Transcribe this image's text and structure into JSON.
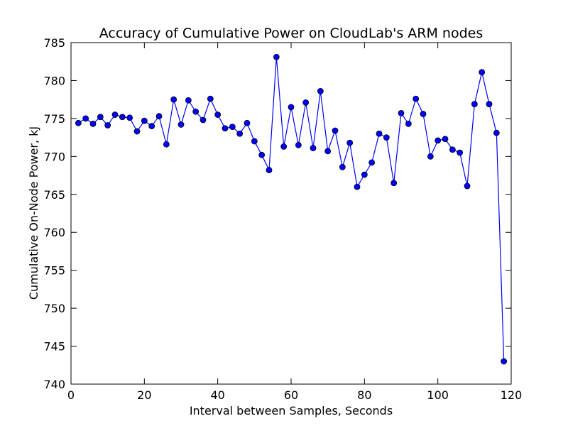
{
  "chart_data": {
    "type": "line",
    "title": "Accuracy of Cumulative Power on CloudLab's ARM nodes",
    "xlabel": "Interval between Samples, Seconds",
    "ylabel": "Cumulative On-Node Power, kJ",
    "xlim": [
      0,
      120
    ],
    "ylim": [
      740,
      785
    ],
    "xticks": [
      "0",
      "20",
      "40",
      "60",
      "80",
      "100",
      "120"
    ],
    "yticks": [
      "740",
      "745",
      "750",
      "755",
      "760",
      "765",
      "770",
      "775",
      "780",
      "785"
    ],
    "grid": false,
    "line_color": "#0000ff",
    "marker": "circle",
    "series": [
      {
        "x": [
          2,
          4,
          6,
          8,
          10,
          12,
          14,
          16,
          18,
          20,
          22,
          24,
          26,
          28,
          30,
          32,
          34,
          36,
          38,
          40,
          42,
          44,
          46,
          48,
          50,
          52,
          54,
          56,
          58,
          60,
          62,
          64,
          66,
          68,
          70,
          72,
          74,
          76,
          78,
          80,
          82,
          84,
          86,
          88,
          90,
          92,
          94,
          96,
          98,
          100,
          102,
          104,
          106,
          108,
          110,
          112,
          114,
          116,
          118
        ],
        "y": [
          774.4,
          775.0,
          774.3,
          775.2,
          774.1,
          775.5,
          775.2,
          775.1,
          773.3,
          774.7,
          774.0,
          775.3,
          771.6,
          777.5,
          774.2,
          777.4,
          775.9,
          774.8,
          777.6,
          775.5,
          773.7,
          773.9,
          773.0,
          774.4,
          772.0,
          770.2,
          768.2,
          783.1,
          771.3,
          776.5,
          771.5,
          777.1,
          771.1,
          778.6,
          770.7,
          773.4,
          768.6,
          771.8,
          766.0,
          767.6,
          769.2,
          773.0,
          772.5,
          766.5,
          775.7,
          774.3,
          777.6,
          775.6,
          770.0,
          772.1,
          772.3,
          770.9,
          770.5,
          766.1,
          776.9,
          781.1,
          776.9,
          773.1,
          743.0
        ]
      }
    ]
  }
}
